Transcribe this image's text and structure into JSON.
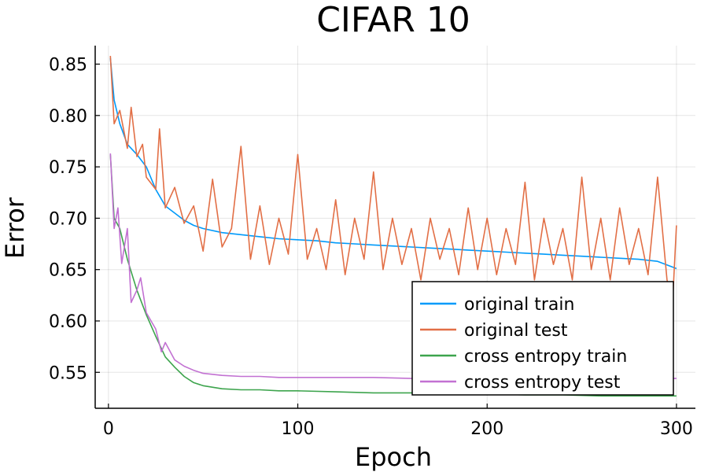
{
  "chart_data": {
    "type": "line",
    "title": "CIFAR 10",
    "xlabel": "Epoch",
    "ylabel": "Error",
    "xlim": [
      -7,
      310
    ],
    "ylim": [
      0.515,
      0.868
    ],
    "xticks": [
      0,
      100,
      200,
      300
    ],
    "yticks": [
      0.55,
      0.6,
      0.65,
      0.7,
      0.75,
      0.8,
      0.85
    ],
    "grid": true,
    "legend_position": "bottom-right",
    "series": [
      {
        "name": "original train",
        "color": "#009AFA",
        "points": [
          [
            1,
            0.856
          ],
          [
            3,
            0.815
          ],
          [
            6,
            0.792
          ],
          [
            10,
            0.772
          ],
          [
            15,
            0.762
          ],
          [
            20,
            0.75
          ],
          [
            25,
            0.728
          ],
          [
            30,
            0.712
          ],
          [
            35,
            0.705
          ],
          [
            40,
            0.698
          ],
          [
            45,
            0.693
          ],
          [
            50,
            0.69
          ],
          [
            60,
            0.686
          ],
          [
            70,
            0.684
          ],
          [
            80,
            0.682
          ],
          [
            90,
            0.68
          ],
          [
            100,
            0.679
          ],
          [
            110,
            0.678
          ],
          [
            120,
            0.676
          ],
          [
            130,
            0.675
          ],
          [
            140,
            0.674
          ],
          [
            150,
            0.673
          ],
          [
            160,
            0.672
          ],
          [
            170,
            0.671
          ],
          [
            180,
            0.67
          ],
          [
            190,
            0.669
          ],
          [
            200,
            0.668
          ],
          [
            210,
            0.667
          ],
          [
            220,
            0.666
          ],
          [
            230,
            0.665
          ],
          [
            240,
            0.664
          ],
          [
            250,
            0.663
          ],
          [
            260,
            0.662
          ],
          [
            270,
            0.661
          ],
          [
            280,
            0.66
          ],
          [
            290,
            0.658
          ],
          [
            300,
            0.651
          ]
        ]
      },
      {
        "name": "original test",
        "color": "#E26F46",
        "points": [
          [
            1,
            0.858
          ],
          [
            3,
            0.792
          ],
          [
            6,
            0.805
          ],
          [
            10,
            0.768
          ],
          [
            12,
            0.808
          ],
          [
            15,
            0.76
          ],
          [
            18,
            0.772
          ],
          [
            20,
            0.74
          ],
          [
            25,
            0.728
          ],
          [
            27,
            0.787
          ],
          [
            30,
            0.71
          ],
          [
            35,
            0.73
          ],
          [
            40,
            0.695
          ],
          [
            45,
            0.712
          ],
          [
            50,
            0.668
          ],
          [
            55,
            0.738
          ],
          [
            60,
            0.672
          ],
          [
            65,
            0.69
          ],
          [
            70,
            0.77
          ],
          [
            75,
            0.66
          ],
          [
            80,
            0.712
          ],
          [
            85,
            0.655
          ],
          [
            90,
            0.7
          ],
          [
            95,
            0.665
          ],
          [
            100,
            0.762
          ],
          [
            105,
            0.66
          ],
          [
            110,
            0.69
          ],
          [
            115,
            0.65
          ],
          [
            120,
            0.718
          ],
          [
            125,
            0.645
          ],
          [
            130,
            0.7
          ],
          [
            135,
            0.66
          ],
          [
            140,
            0.745
          ],
          [
            145,
            0.65
          ],
          [
            150,
            0.7
          ],
          [
            155,
            0.655
          ],
          [
            160,
            0.69
          ],
          [
            165,
            0.64
          ],
          [
            170,
            0.7
          ],
          [
            175,
            0.66
          ],
          [
            180,
            0.69
          ],
          [
            185,
            0.645
          ],
          [
            190,
            0.71
          ],
          [
            195,
            0.65
          ],
          [
            200,
            0.7
          ],
          [
            205,
            0.645
          ],
          [
            210,
            0.69
          ],
          [
            215,
            0.655
          ],
          [
            220,
            0.735
          ],
          [
            225,
            0.64
          ],
          [
            230,
            0.7
          ],
          [
            235,
            0.655
          ],
          [
            240,
            0.69
          ],
          [
            245,
            0.64
          ],
          [
            250,
            0.74
          ],
          [
            255,
            0.65
          ],
          [
            260,
            0.7
          ],
          [
            265,
            0.64
          ],
          [
            270,
            0.71
          ],
          [
            275,
            0.655
          ],
          [
            280,
            0.69
          ],
          [
            285,
            0.645
          ],
          [
            290,
            0.74
          ],
          [
            295,
            0.64
          ],
          [
            298,
            0.62
          ],
          [
            300,
            0.693
          ]
        ]
      },
      {
        "name": "cross entropy train",
        "color": "#3DA44D",
        "points": [
          [
            1,
            0.762
          ],
          [
            3,
            0.7
          ],
          [
            6,
            0.69
          ],
          [
            10,
            0.66
          ],
          [
            15,
            0.63
          ],
          [
            20,
            0.606
          ],
          [
            25,
            0.585
          ],
          [
            30,
            0.565
          ],
          [
            35,
            0.555
          ],
          [
            40,
            0.546
          ],
          [
            45,
            0.54
          ],
          [
            50,
            0.537
          ],
          [
            60,
            0.534
          ],
          [
            70,
            0.533
          ],
          [
            80,
            0.533
          ],
          [
            90,
            0.532
          ],
          [
            100,
            0.532
          ],
          [
            120,
            0.531
          ],
          [
            140,
            0.53
          ],
          [
            160,
            0.53
          ],
          [
            180,
            0.529
          ],
          [
            200,
            0.529
          ],
          [
            220,
            0.528
          ],
          [
            240,
            0.528
          ],
          [
            260,
            0.527
          ],
          [
            280,
            0.527
          ],
          [
            300,
            0.527
          ]
        ]
      },
      {
        "name": "cross entropy test",
        "color": "#C271D2",
        "points": [
          [
            1,
            0.763
          ],
          [
            3,
            0.69
          ],
          [
            5,
            0.71
          ],
          [
            7,
            0.656
          ],
          [
            10,
            0.69
          ],
          [
            12,
            0.618
          ],
          [
            15,
            0.63
          ],
          [
            17,
            0.642
          ],
          [
            20,
            0.608
          ],
          [
            25,
            0.592
          ],
          [
            28,
            0.57
          ],
          [
            30,
            0.579
          ],
          [
            35,
            0.562
          ],
          [
            40,
            0.556
          ],
          [
            45,
            0.552
          ],
          [
            50,
            0.549
          ],
          [
            60,
            0.547
          ],
          [
            70,
            0.546
          ],
          [
            80,
            0.546
          ],
          [
            90,
            0.545
          ],
          [
            100,
            0.545
          ],
          [
            120,
            0.545
          ],
          [
            140,
            0.545
          ],
          [
            160,
            0.544
          ],
          [
            180,
            0.544
          ],
          [
            200,
            0.544
          ],
          [
            220,
            0.544
          ],
          [
            240,
            0.544
          ],
          [
            260,
            0.544
          ],
          [
            280,
            0.544
          ],
          [
            300,
            0.544
          ]
        ]
      }
    ]
  }
}
